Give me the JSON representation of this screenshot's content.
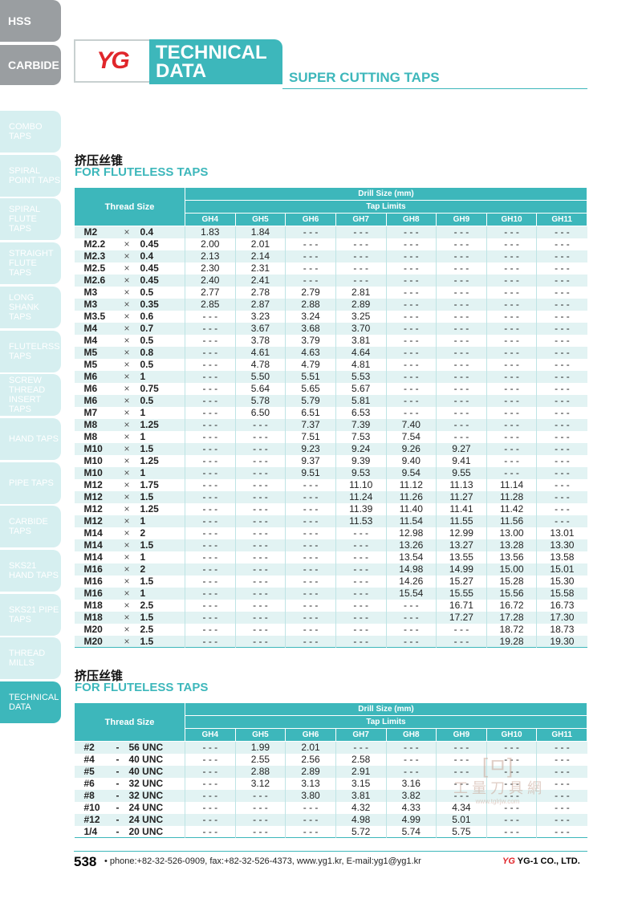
{
  "left_tabs": {
    "top": [
      "HSS",
      "CARBIDE"
    ],
    "side": [
      {
        "label": "COMBO TAPS",
        "active": false
      },
      {
        "label": "SPIRAL POINT TAPS",
        "active": false
      },
      {
        "label": "SPIRAL FLUTE TAPS",
        "active": false
      },
      {
        "label": "STRAIGHT FLUTE TAPS",
        "active": false
      },
      {
        "label": "LONG SHANK TAPS",
        "active": false
      },
      {
        "label": "FLUTELRSS TAPS",
        "active": false
      },
      {
        "label": "SCREW THREAD INSERT TAPS",
        "active": false
      },
      {
        "label": "HAND TAPS",
        "active": false
      },
      {
        "label": "PIPE TAPS",
        "active": false
      },
      {
        "label": "CARBIDE TAPS",
        "active": false
      },
      {
        "label": "SKS21 HAND TAPS",
        "active": false
      },
      {
        "label": "SKS21 PIPE TAPS",
        "active": false
      },
      {
        "label": "THREAD MILLS",
        "active": false
      },
      {
        "label": "TECHNICAL DATA",
        "active": true
      }
    ]
  },
  "header": {
    "logo": "YG",
    "title_line1": "TECHNICAL",
    "title_line2": "DATA",
    "subtitle": "SUPER CUTTING TAPS"
  },
  "colors": {
    "accent": "#3db7bb",
    "brand_red": "#e0262b",
    "row_alt": "#e2f3f3"
  },
  "table_headers": {
    "thread_size": "Thread Size",
    "drill_size": "Drill Size (mm)",
    "tap_limits": "Tap Limits",
    "limits": [
      "GH4",
      "GH5",
      "GH6",
      "GH7",
      "GH8",
      "GH9",
      "GH10",
      "GH11"
    ]
  },
  "section1": {
    "title_cn": "挤压丝锥",
    "title_en": "FOR FLUTELESS TAPS",
    "rows": [
      {
        "d": "M2",
        "p": "0.4",
        "v": [
          "1.83",
          "1.84",
          "- - -",
          "- - -",
          "- - -",
          "- - -",
          "- - -",
          "- - -"
        ]
      },
      {
        "d": "M2.2",
        "p": "0.45",
        "v": [
          "2.00",
          "2.01",
          "- - -",
          "- - -",
          "- - -",
          "- - -",
          "- - -",
          "- - -"
        ]
      },
      {
        "d": "M2.3",
        "p": "0.4",
        "v": [
          "2.13",
          "2.14",
          "- - -",
          "- - -",
          "- - -",
          "- - -",
          "- - -",
          "- - -"
        ]
      },
      {
        "d": "M2.5",
        "p": "0.45",
        "v": [
          "2.30",
          "2.31",
          "- - -",
          "- - -",
          "- - -",
          "- - -",
          "- - -",
          "- - -"
        ]
      },
      {
        "d": "M2.6",
        "p": "0.45",
        "v": [
          "2.40",
          "2.41",
          "- - -",
          "- - -",
          "- - -",
          "- - -",
          "- - -",
          "- - -"
        ]
      },
      {
        "d": "M3",
        "p": "0.5",
        "v": [
          "2.77",
          "2.78",
          "2.79",
          "2.81",
          "- - -",
          "- - -",
          "- - -",
          "- - -"
        ]
      },
      {
        "d": "M3",
        "p": "0.35",
        "v": [
          "2.85",
          "2.87",
          "2.88",
          "2.89",
          "- - -",
          "- - -",
          "- - -",
          "- - -"
        ]
      },
      {
        "d": "M3.5",
        "p": "0.6",
        "v": [
          "- - -",
          "3.23",
          "3.24",
          "3.25",
          "- - -",
          "- - -",
          "- - -",
          "- - -"
        ]
      },
      {
        "d": "M4",
        "p": "0.7",
        "v": [
          "- - -",
          "3.67",
          "3.68",
          "3.70",
          "- - -",
          "- - -",
          "- - -",
          "- - -"
        ]
      },
      {
        "d": "M4",
        "p": "0.5",
        "v": [
          "- - -",
          "3.78",
          "3.79",
          "3.81",
          "- - -",
          "- - -",
          "- - -",
          "- - -"
        ]
      },
      {
        "d": "M5",
        "p": "0.8",
        "v": [
          "- - -",
          "4.61",
          "4.63",
          "4.64",
          "- - -",
          "- - -",
          "- - -",
          "- - -"
        ]
      },
      {
        "d": "M5",
        "p": "0.5",
        "v": [
          "- - -",
          "4.78",
          "4.79",
          "4.81",
          "- - -",
          "- - -",
          "- - -",
          "- - -"
        ]
      },
      {
        "d": "M6",
        "p": "1",
        "v": [
          "- - -",
          "5.50",
          "5.51",
          "5.53",
          "- - -",
          "- - -",
          "- - -",
          "- - -"
        ]
      },
      {
        "d": "M6",
        "p": "0.75",
        "v": [
          "- - -",
          "5.64",
          "5.65",
          "5.67",
          "- - -",
          "- - -",
          "- - -",
          "- - -"
        ]
      },
      {
        "d": "M6",
        "p": "0.5",
        "v": [
          "- - -",
          "5.78",
          "5.79",
          "5.81",
          "- - -",
          "- - -",
          "- - -",
          "- - -"
        ]
      },
      {
        "d": "M7",
        "p": "1",
        "v": [
          "- - -",
          "6.50",
          "6.51",
          "6.53",
          "- - -",
          "- - -",
          "- - -",
          "- - -"
        ]
      },
      {
        "d": "M8",
        "p": "1.25",
        "v": [
          "- - -",
          "- - -",
          "7.37",
          "7.39",
          "7.40",
          "- - -",
          "- - -",
          "- - -"
        ]
      },
      {
        "d": "M8",
        "p": "1",
        "v": [
          "- - -",
          "- - -",
          "7.51",
          "7.53",
          "7.54",
          "- - -",
          "- - -",
          "- - -"
        ]
      },
      {
        "d": "M10",
        "p": "1.5",
        "v": [
          "- - -",
          "- - -",
          "9.23",
          "9.24",
          "9.26",
          "9.27",
          "- - -",
          "- - -"
        ]
      },
      {
        "d": "M10",
        "p": "1.25",
        "v": [
          "- - -",
          "- - -",
          "9.37",
          "9.39",
          "9.40",
          "9.41",
          "- - -",
          "- - -"
        ]
      },
      {
        "d": "M10",
        "p": "1",
        "v": [
          "- - -",
          "- - -",
          "9.51",
          "9.53",
          "9.54",
          "9.55",
          "- - -",
          "- - -"
        ]
      },
      {
        "d": "M12",
        "p": "1.75",
        "v": [
          "- - -",
          "- - -",
          "- - -",
          "11.10",
          "11.12",
          "11.13",
          "11.14",
          "- - -"
        ]
      },
      {
        "d": "M12",
        "p": "1.5",
        "v": [
          "- - -",
          "- - -",
          "- - -",
          "11.24",
          "11.26",
          "11.27",
          "11.28",
          "- - -"
        ]
      },
      {
        "d": "M12",
        "p": "1.25",
        "v": [
          "- - -",
          "- - -",
          "- - -",
          "11.39",
          "11.40",
          "11.41",
          "11.42",
          "- - -"
        ]
      },
      {
        "d": "M12",
        "p": "1",
        "v": [
          "- - -",
          "- - -",
          "- - -",
          "11.53",
          "11.54",
          "11.55",
          "11.56",
          "- - -"
        ]
      },
      {
        "d": "M14",
        "p": "2",
        "v": [
          "- - -",
          "- - -",
          "- - -",
          "- - -",
          "12.98",
          "12.99",
          "13.00",
          "13.01"
        ]
      },
      {
        "d": "M14",
        "p": "1.5",
        "v": [
          "- - -",
          "- - -",
          "- - -",
          "- - -",
          "13.26",
          "13.27",
          "13.28",
          "13.30"
        ]
      },
      {
        "d": "M14",
        "p": "1",
        "v": [
          "- - -",
          "- - -",
          "- - -",
          "- - -",
          "13.54",
          "13.55",
          "13.56",
          "13.58"
        ]
      },
      {
        "d": "M16",
        "p": "2",
        "v": [
          "- - -",
          "- - -",
          "- - -",
          "- - -",
          "14.98",
          "14.99",
          "15.00",
          "15.01"
        ]
      },
      {
        "d": "M16",
        "p": "1.5",
        "v": [
          "- - -",
          "- - -",
          "- - -",
          "- - -",
          "14.26",
          "15.27",
          "15.28",
          "15.30"
        ]
      },
      {
        "d": "M16",
        "p": "1",
        "v": [
          "- - -",
          "- - -",
          "- - -",
          "- - -",
          "15.54",
          "15.55",
          "15.56",
          "15.58"
        ]
      },
      {
        "d": "M18",
        "p": "2.5",
        "v": [
          "- - -",
          "- - -",
          "- - -",
          "- - -",
          "- - -",
          "16.71",
          "16.72",
          "16.73"
        ]
      },
      {
        "d": "M18",
        "p": "1.5",
        "v": [
          "- - -",
          "- - -",
          "- - -",
          "- - -",
          "- - -",
          "17.27",
          "17.28",
          "17.30"
        ]
      },
      {
        "d": "M20",
        "p": "2.5",
        "v": [
          "- - -",
          "- - -",
          "- - -",
          "- - -",
          "- - -",
          "- - -",
          "18.72",
          "18.73"
        ]
      },
      {
        "d": "M20",
        "p": "1.5",
        "v": [
          "- - -",
          "- - -",
          "- - -",
          "- - -",
          "- - -",
          "- - -",
          "19.28",
          "19.30"
        ]
      }
    ]
  },
  "section2": {
    "title_cn": "挤压丝锥",
    "title_en": "FOR FLUTELESS TAPS",
    "rows": [
      {
        "d": "#2",
        "p": "56 UNC",
        "v": [
          "- - -",
          "1.99",
          "2.01",
          "- - -",
          "- - -",
          "- - -",
          "- - -",
          "- - -"
        ]
      },
      {
        "d": "#4",
        "p": "40 UNC",
        "v": [
          "- - -",
          "2.55",
          "2.56",
          "2.58",
          "- - -",
          "- - -",
          "- - -",
          "- - -"
        ]
      },
      {
        "d": "#5",
        "p": "40 UNC",
        "v": [
          "- - -",
          "2.88",
          "2.89",
          "2.91",
          "- - -",
          "- - -",
          "- - -",
          "- - -"
        ]
      },
      {
        "d": "#6",
        "p": "32 UNC",
        "v": [
          "- - -",
          "3.12",
          "3.13",
          "3.15",
          "3.16",
          "- - -",
          "- - -",
          "- - -"
        ]
      },
      {
        "d": "#8",
        "p": "32 UNC",
        "v": [
          "- - -",
          "- - -",
          "3.80",
          "3.81",
          "3.82",
          "- - -",
          "- - -",
          "- - -"
        ]
      },
      {
        "d": "#10",
        "p": "24 UNC",
        "v": [
          "- - -",
          "- - -",
          "- - -",
          "4.32",
          "4.33",
          "4.34",
          "- - -",
          "- - -"
        ]
      },
      {
        "d": "#12",
        "p": "24 UNC",
        "v": [
          "- - -",
          "- - -",
          "- - -",
          "4.98",
          "4.99",
          "5.01",
          "- - -",
          "- - -"
        ]
      },
      {
        "d": "1/4",
        "p": "20 UNC",
        "v": [
          "- - -",
          "- - -",
          "- - -",
          "5.72",
          "5.74",
          "5.75",
          "- - -",
          "- - -"
        ]
      }
    ]
  },
  "watermark": {
    "text": "工 量 刀 具 網",
    "url": "www.tglrjw.com"
  },
  "footer": {
    "page": "538",
    "contact": "•  phone:+82-32-526-0909,  fax:+82-32-526-4373,  www.yg1.kr,  E-mail:yg1@yg1.kr",
    "logo": "YG",
    "company": "YG-1 CO., LTD."
  }
}
